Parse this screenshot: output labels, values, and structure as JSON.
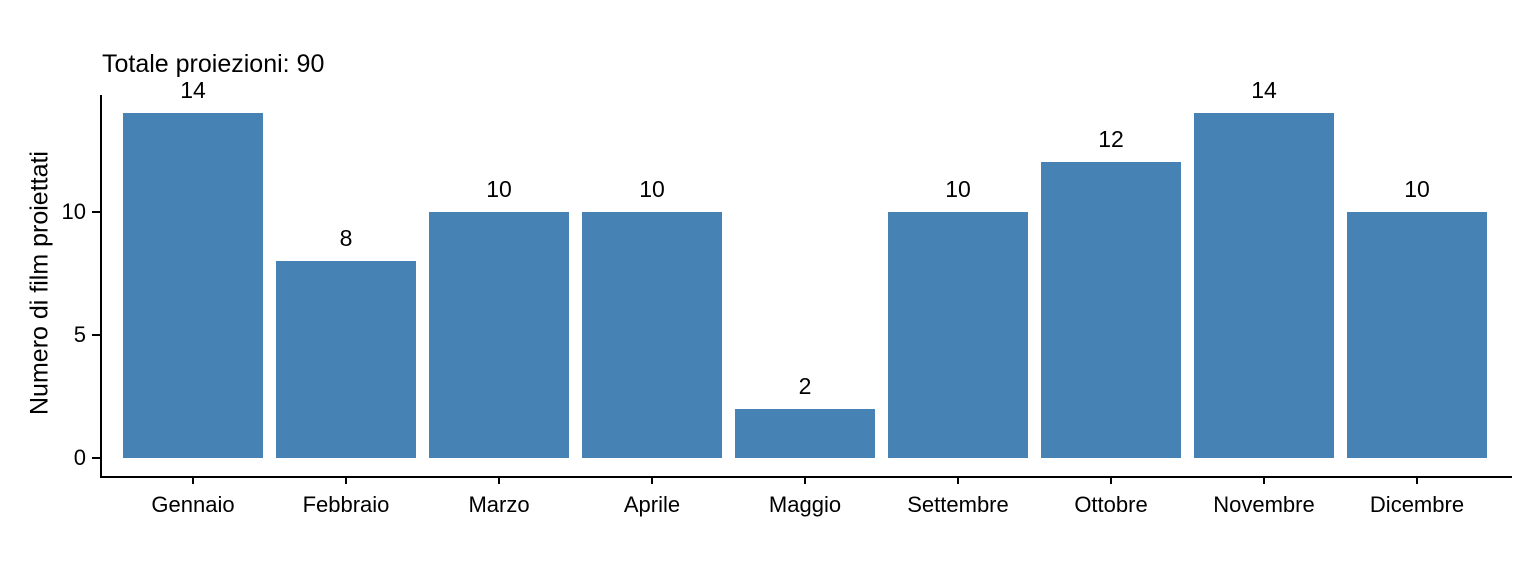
{
  "chart_data": {
    "type": "bar",
    "title": "Totale proiezioni: 90",
    "total_proiezioni": 90,
    "ylabel": "Numero di film proiettati",
    "xlabel": "",
    "categories": [
      "Gennaio",
      "Febbraio",
      "Marzo",
      "Aprile",
      "Maggio",
      "Settembre",
      "Ottobre",
      "Novembre",
      "Dicembre"
    ],
    "values": [
      14,
      8,
      10,
      10,
      2,
      10,
      12,
      14,
      10
    ],
    "yticks": [
      0,
      5,
      10
    ],
    "ylim": [
      0,
      14.7
    ],
    "bar_color": "#4682B4",
    "text_color": "#000000",
    "background_color": "#ffffff",
    "grid": false,
    "legend": false,
    "value_labels_shown": true
  }
}
